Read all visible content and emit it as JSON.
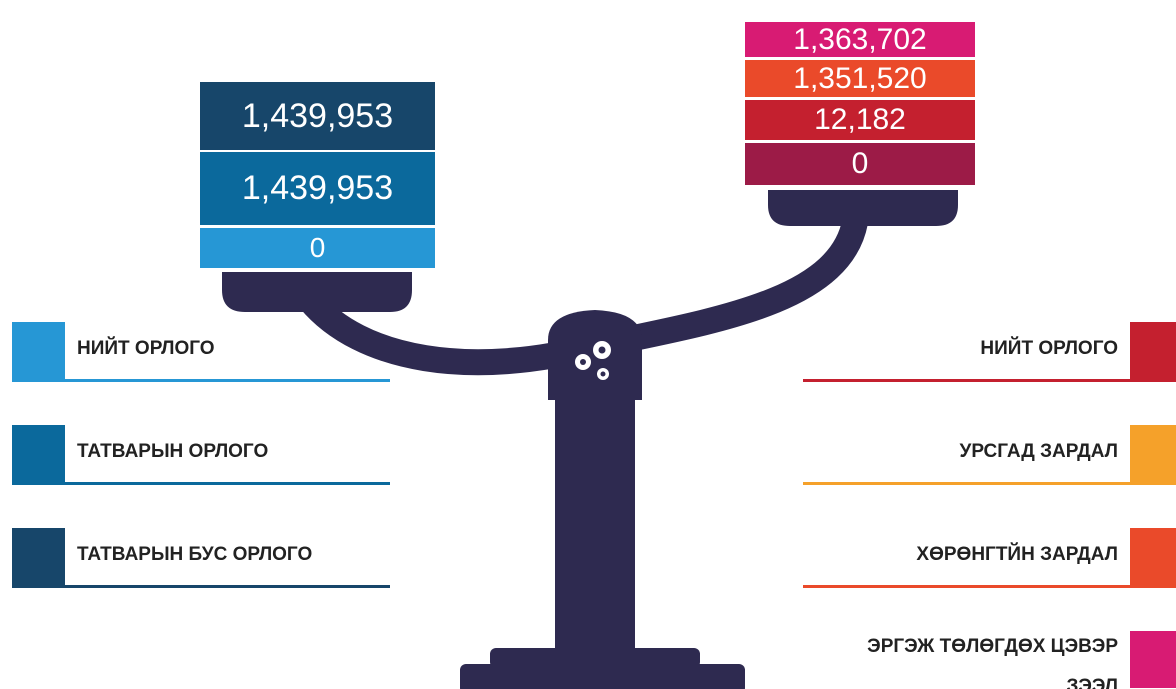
{
  "left_stack": [
    {
      "value": "1,439,953",
      "color": "#17466a"
    },
    {
      "value": "1,439,953",
      "color": "#0b699c"
    },
    {
      "value": "0",
      "color": "#2697d5"
    }
  ],
  "right_stack": [
    {
      "value": "1,363,702",
      "color": "#d81b73"
    },
    {
      "value": "1,351,520",
      "color": "#ea4a2a"
    },
    {
      "value": "12,182",
      "color": "#c4202f"
    },
    {
      "value": "0",
      "color": "#9c1b47"
    }
  ],
  "left_legend": [
    {
      "label": "НИЙТ ОРЛОГО",
      "color": "#2697d5"
    },
    {
      "label": "ТАТВАРЫН ОРЛОГО",
      "color": "#0b699c"
    },
    {
      "label": "ТАТВАРЫН БУС ОРЛОГО",
      "color": "#17466a"
    }
  ],
  "right_legend": [
    {
      "label": "НИЙТ ОРЛОГО",
      "color": "#c4202f"
    },
    {
      "label": "УРСГАД ЗАРДАЛ",
      "color": "#f5a12a"
    },
    {
      "label": "ХӨРӨНГТЙН ЗАРДАЛ",
      "color": "#ea4a2a"
    },
    {
      "label": "ЭРГЭЖ ТӨЛӨГДӨХ ЦЭВЭР ЗЭЭЛ",
      "color": "#d81b73"
    }
  ]
}
